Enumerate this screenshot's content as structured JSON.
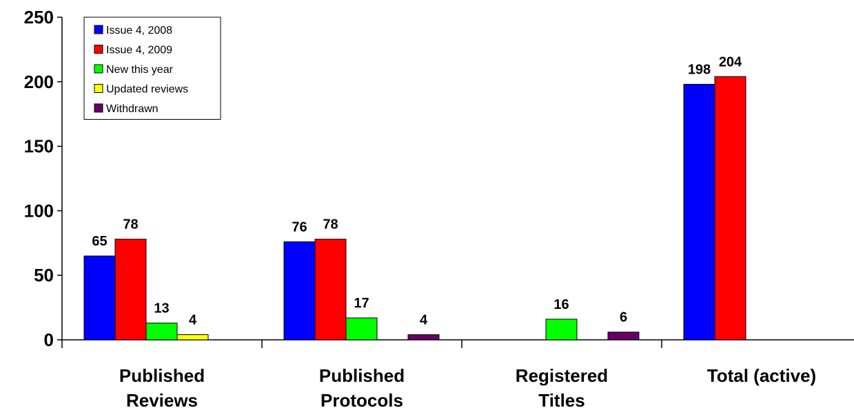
{
  "chart_data": {
    "type": "bar",
    "title": "",
    "xlabel": "",
    "ylabel": "",
    "ylim": [
      0,
      250
    ],
    "yticks": [
      0,
      50,
      100,
      150,
      200,
      250
    ],
    "grid": false,
    "legend_position": "top-left",
    "categories": [
      [
        "Published",
        "Reviews"
      ],
      [
        "Published",
        "Protocols"
      ],
      [
        "Registered",
        "Titles"
      ],
      [
        "Total (active)"
      ]
    ],
    "series": [
      {
        "name": "Issue 4, 2008",
        "color": "#0000FF",
        "values": [
          65,
          76,
          null,
          198
        ],
        "labels": [
          "65",
          "76",
          "",
          "198"
        ]
      },
      {
        "name": "Issue 4, 2009",
        "color": "#FF0000",
        "values": [
          78,
          78,
          null,
          204
        ],
        "labels": [
          "78",
          "78",
          "",
          "204"
        ]
      },
      {
        "name": "New this year",
        "color": "#00FF00",
        "values": [
          13,
          17,
          16,
          null
        ],
        "labels": [
          "13",
          "17",
          "16",
          ""
        ]
      },
      {
        "name": "Updated reviews",
        "color": "#FFFF00",
        "values": [
          4,
          null,
          null,
          null
        ],
        "labels": [
          "4",
          "",
          "",
          ""
        ]
      },
      {
        "name": "Withdrawn",
        "color": "#660066",
        "values": [
          null,
          4,
          6,
          null
        ],
        "labels": [
          "",
          "4",
          "6",
          ""
        ]
      }
    ]
  }
}
